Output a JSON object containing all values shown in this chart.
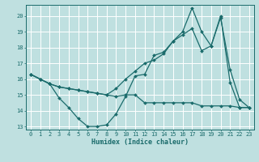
{
  "xlabel": "Humidex (Indice chaleur)",
  "background_color": "#bfe0e0",
  "grid_color": "#ffffff",
  "line_color": "#1a6b6b",
  "xlim": [
    -0.5,
    23.5
  ],
  "ylim": [
    12.8,
    20.7
  ],
  "yticks": [
    13,
    14,
    15,
    16,
    17,
    18,
    19,
    20
  ],
  "xticks": [
    0,
    1,
    2,
    3,
    4,
    5,
    6,
    7,
    8,
    9,
    10,
    11,
    12,
    13,
    14,
    15,
    16,
    17,
    18,
    19,
    20,
    21,
    22,
    23
  ],
  "line1_x": [
    0,
    1,
    2,
    3,
    4,
    5,
    6,
    7,
    8,
    9,
    10,
    11,
    12,
    13,
    14,
    15,
    16,
    17,
    18,
    19,
    20,
    21,
    22,
    23
  ],
  "line1_y": [
    16.3,
    16.0,
    15.7,
    14.8,
    14.2,
    13.5,
    13.0,
    13.0,
    13.1,
    13.8,
    14.9,
    16.2,
    16.3,
    17.5,
    17.7,
    18.4,
    19.0,
    20.5,
    19.0,
    18.1,
    20.0,
    15.8,
    14.2,
    14.2
  ],
  "line2_x": [
    0,
    1,
    2,
    3,
    4,
    5,
    6,
    7,
    8,
    9,
    10,
    11,
    12,
    13,
    14,
    15,
    16,
    17,
    18,
    19,
    20,
    21,
    22,
    23
  ],
  "line2_y": [
    16.3,
    16.0,
    15.7,
    15.5,
    15.4,
    15.3,
    15.2,
    15.1,
    15.0,
    14.9,
    15.0,
    15.0,
    14.5,
    14.5,
    14.5,
    14.5,
    14.5,
    14.5,
    14.3,
    14.3,
    14.3,
    14.3,
    14.2,
    14.2
  ],
  "line3_x": [
    0,
    1,
    2,
    3,
    4,
    5,
    6,
    7,
    8,
    9,
    10,
    11,
    12,
    13,
    14,
    15,
    16,
    17,
    18,
    19,
    20,
    21,
    22,
    23
  ],
  "line3_y": [
    16.3,
    16.0,
    15.7,
    15.5,
    15.4,
    15.3,
    15.2,
    15.1,
    15.0,
    15.4,
    16.0,
    16.5,
    17.0,
    17.2,
    17.6,
    18.4,
    18.8,
    19.2,
    17.8,
    18.1,
    19.9,
    16.6,
    14.7,
    14.2
  ]
}
